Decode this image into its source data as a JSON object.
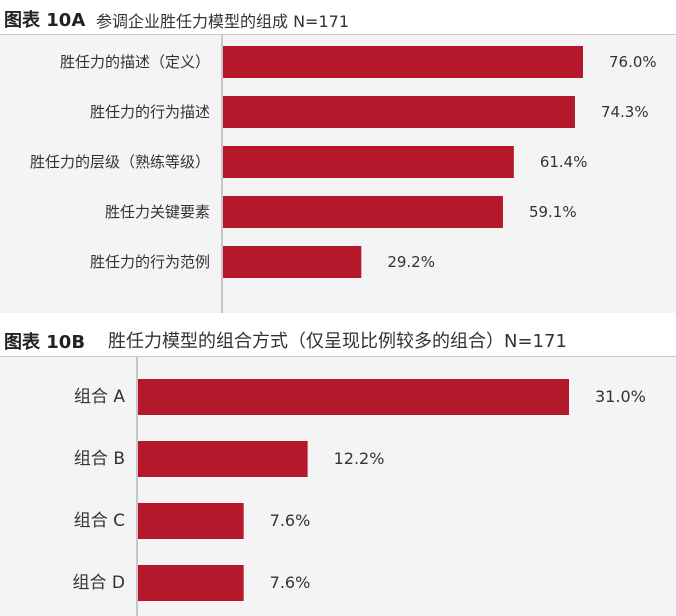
{
  "chart_data": [
    {
      "type": "bar",
      "orientation": "horizontal",
      "figure_label": "图表 10A",
      "title": "参调企业胜任力模型的组成 N=171",
      "categories": [
        "胜任力的描述（定义）",
        "胜任力的行为描述",
        "胜任力的层级（熟练等级）",
        "胜任力关键要素",
        "胜任力的行为范例"
      ],
      "values": [
        76.0,
        74.3,
        61.4,
        59.1,
        29.2
      ],
      "value_labels": [
        "76.0%",
        "74.3%",
        "61.4%",
        "59.1%",
        "29.2%"
      ],
      "xlim": [
        0,
        100
      ],
      "grid": false,
      "bar_color": "#b5182b"
    },
    {
      "type": "bar",
      "orientation": "horizontal",
      "figure_label": "图表 10B",
      "title": "胜任力模型的组合方式（仅呈现比例较多的组合）N=171",
      "categories": [
        "组合 A",
        "组合 B",
        "组合 C",
        "组合 D"
      ],
      "values": [
        31.0,
        12.2,
        7.6,
        7.6
      ],
      "value_labels": [
        "31.0%",
        "12.2%",
        "7.6%",
        "7.6%"
      ],
      "xlim": [
        0,
        40
      ],
      "grid": false,
      "bar_color": "#b5182b"
    }
  ]
}
